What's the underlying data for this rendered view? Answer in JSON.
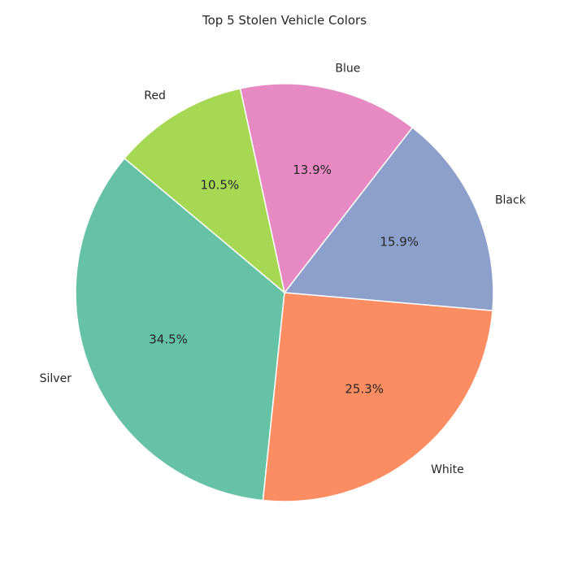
{
  "chart_data": {
    "type": "pie",
    "title": "Top 5 Stolen Vehicle Colors",
    "categories": [
      "Silver",
      "White",
      "Black",
      "Blue",
      "Red"
    ],
    "values": [
      34.5,
      25.3,
      15.9,
      13.9,
      10.5
    ],
    "value_labels": [
      "34.5%",
      "25.3%",
      "15.9%",
      "13.9%",
      "10.5%"
    ],
    "colors": [
      "#66c2a5",
      "#fc8d62",
      "#8da0cb",
      "#e78ac3",
      "#a6d854"
    ],
    "start_angle_deg": 140,
    "direction": "counterclockwise",
    "legend": "none"
  }
}
